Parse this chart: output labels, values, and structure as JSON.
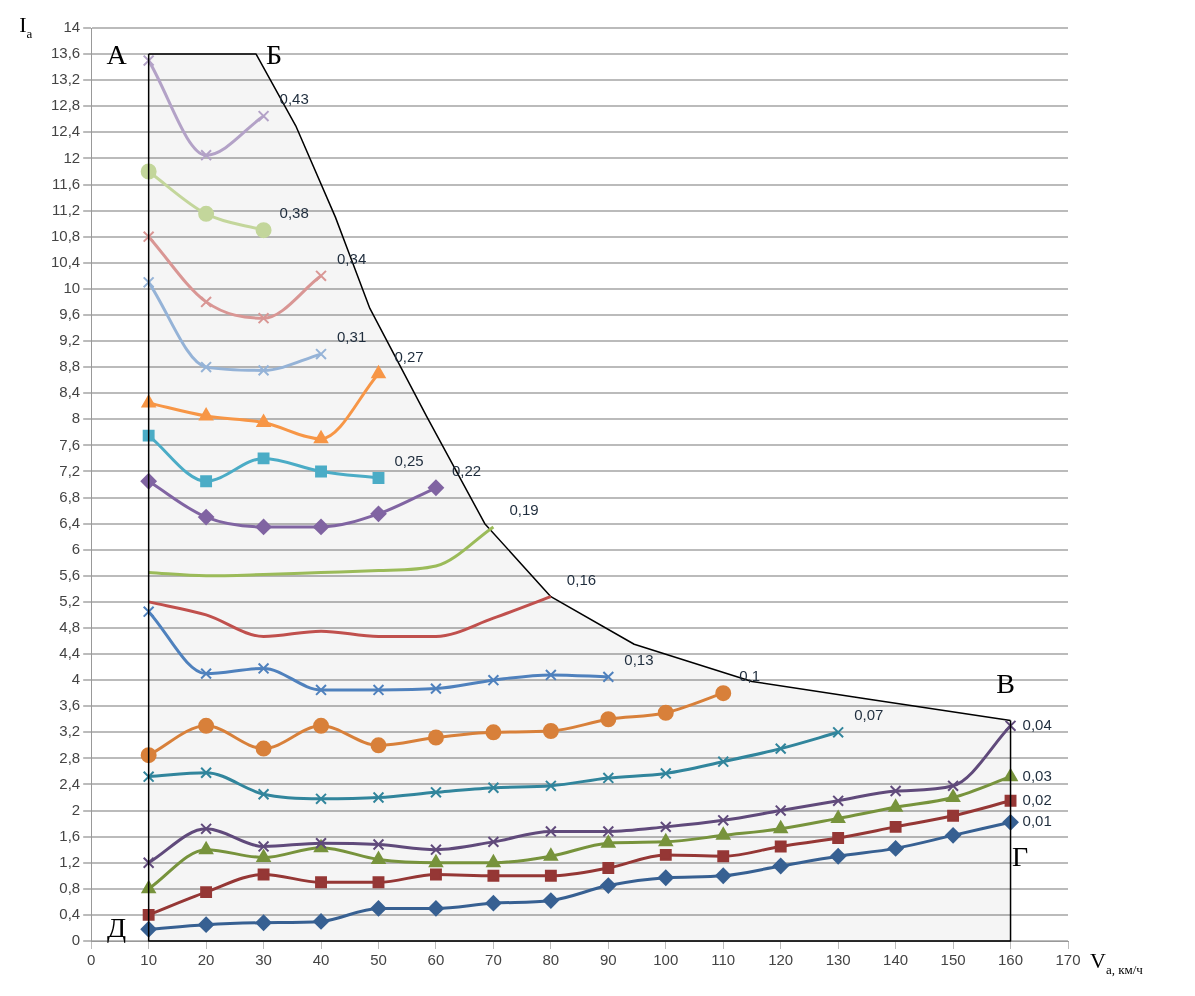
{
  "chart_data": {
    "type": "line",
    "xlabel": "V$_{a, км/ч}$",
    "ylabel": "I$_{a}$",
    "xlim": [
      0,
      170
    ],
    "xticks": [
      0,
      10,
      20,
      30,
      40,
      50,
      60,
      70,
      80,
      90,
      100,
      110,
      120,
      130,
      140,
      150,
      160,
      170
    ],
    "ylim": [
      0,
      14
    ],
    "yticks": [
      0,
      {
        "value": 0.4,
        "label": "0,4"
      },
      {
        "value": 0.8,
        "label": "0,8"
      },
      {
        "value": 1.2,
        "label": "1,2"
      },
      {
        "value": 1.6,
        "label": "1,6"
      },
      2,
      {
        "value": 2.4,
        "label": "2,4"
      },
      {
        "value": 2.8,
        "label": "2,8"
      },
      {
        "value": 3.2,
        "label": "3,2"
      },
      {
        "value": 3.6,
        "label": "3,6"
      },
      4,
      {
        "value": 4.4,
        "label": "4,4"
      },
      {
        "value": 4.8,
        "label": "4,8"
      },
      {
        "value": 5.2,
        "label": "5,2"
      },
      {
        "value": 5.6,
        "label": "5,6"
      },
      6,
      {
        "value": 6.4,
        "label": "6,4"
      },
      {
        "value": 6.8,
        "label": "6,8"
      },
      {
        "value": 7.2,
        "label": "7,2"
      },
      {
        "value": 7.6,
        "label": "7,6"
      },
      8,
      {
        "value": 8.4,
        "label": "8,4"
      },
      {
        "value": 8.8,
        "label": "8,8"
      },
      {
        "value": 9.2,
        "label": "9,2"
      },
      {
        "value": 9.6,
        "label": "9,6"
      },
      10,
      {
        "value": 10.4,
        "label": "10,4"
      },
      {
        "value": 10.8,
        "label": "10,8"
      },
      {
        "value": 11.2,
        "label": "11,2"
      },
      {
        "value": 11.6,
        "label": "11,6"
      },
      12,
      {
        "value": 12.4,
        "label": "12,4"
      },
      {
        "value": 12.8,
        "label": "12,8"
      },
      {
        "value": 13.2,
        "label": "13,2"
      },
      {
        "value": 13.6,
        "label": "13,6"
      },
      14
    ],
    "grid": "y",
    "legend": false,
    "series": [
      {
        "name": "0,43",
        "color": "#b3a2c7",
        "marker": "cross",
        "x": [
          10,
          20,
          30
        ],
        "values": [
          13.5,
          12.05,
          12.65
        ]
      },
      {
        "name": "0,38",
        "color": "#c3d69b",
        "marker": "circle",
        "x": [
          10,
          20,
          30
        ],
        "values": [
          11.8,
          11.15,
          10.9
        ]
      },
      {
        "name": "0,34",
        "color": "#d99694",
        "marker": "cross",
        "x": [
          10,
          20,
          30,
          40
        ],
        "values": [
          10.8,
          9.8,
          9.55,
          10.2
        ]
      },
      {
        "name": "0,31",
        "color": "#95b3d7",
        "marker": "cross",
        "x": [
          10,
          20,
          30,
          40
        ],
        "values": [
          10.1,
          8.8,
          8.75,
          9.0
        ]
      },
      {
        "name": "0,27",
        "color": "#f79646",
        "marker": "triangle",
        "x": [
          10,
          20,
          30,
          40,
          50
        ],
        "values": [
          8.25,
          8.05,
          7.95,
          7.7,
          8.7
        ]
      },
      {
        "name": "0,25",
        "color": "#4bacc6",
        "marker": "square",
        "x": [
          10,
          20,
          30,
          40,
          50
        ],
        "values": [
          7.75,
          7.05,
          7.4,
          7.2,
          7.1
        ]
      },
      {
        "name": "0,22",
        "color": "#8064a2",
        "marker": "diamond",
        "x": [
          10,
          20,
          30,
          40,
          50,
          60
        ],
        "values": [
          7.05,
          6.5,
          6.35,
          6.35,
          6.55,
          6.95
        ]
      },
      {
        "name": "0,19",
        "color": "#9bbb59",
        "marker": "none",
        "x": [
          10,
          20,
          30,
          40,
          50,
          60,
          70
        ],
        "values": [
          5.65,
          5.6,
          5.62,
          5.65,
          5.68,
          5.75,
          6.35
        ]
      },
      {
        "name": "0,16",
        "color": "#c0504d",
        "marker": "none",
        "x": [
          10,
          20,
          30,
          40,
          50,
          60,
          70,
          80
        ],
        "values": [
          5.2,
          5.0,
          4.67,
          4.75,
          4.67,
          4.67,
          4.95,
          5.28
        ]
      },
      {
        "name": "0,13",
        "color": "#4f81bd",
        "marker": "cross",
        "x": [
          10,
          20,
          30,
          40,
          50,
          60,
          70,
          80,
          90
        ],
        "values": [
          5.05,
          4.1,
          4.18,
          3.85,
          3.85,
          3.87,
          4.0,
          4.08,
          4.05
        ]
      },
      {
        "name": "0,1",
        "color": "#d8803a",
        "marker": "circle",
        "x": [
          10,
          20,
          30,
          40,
          50,
          60,
          70,
          80,
          90,
          100,
          110
        ],
        "values": [
          2.85,
          3.3,
          2.95,
          3.3,
          3.0,
          3.12,
          3.2,
          3.22,
          3.4,
          3.5,
          3.8
        ]
      },
      {
        "name": "0,07",
        "color": "#31859c",
        "marker": "cross",
        "x": [
          10,
          20,
          30,
          40,
          50,
          60,
          70,
          80,
          90,
          100,
          110,
          120,
          130
        ],
        "values": [
          2.52,
          2.58,
          2.25,
          2.18,
          2.2,
          2.28,
          2.35,
          2.38,
          2.5,
          2.57,
          2.75,
          2.95,
          3.2
        ]
      },
      {
        "name": "0,04",
        "color": "#604a7b",
        "marker": "cross",
        "x": [
          10,
          20,
          30,
          40,
          50,
          60,
          70,
          80,
          90,
          100,
          110,
          120,
          130,
          140,
          150,
          160
        ],
        "values": [
          1.2,
          1.72,
          1.45,
          1.5,
          1.48,
          1.4,
          1.52,
          1.68,
          1.68,
          1.75,
          1.85,
          2.0,
          2.15,
          2.3,
          2.38,
          3.3
        ]
      },
      {
        "name": "0,03",
        "color": "#77933c",
        "marker": "triangle",
        "x": [
          10,
          20,
          30,
          40,
          50,
          60,
          70,
          80,
          90,
          100,
          110,
          120,
          130,
          140,
          150,
          160
        ],
        "values": [
          0.8,
          1.4,
          1.28,
          1.43,
          1.25,
          1.2,
          1.2,
          1.3,
          1.5,
          1.52,
          1.62,
          1.72,
          1.88,
          2.05,
          2.2,
          2.52
        ]
      },
      {
        "name": "0,02",
        "color": "#953735",
        "marker": "square",
        "x": [
          10,
          20,
          30,
          40,
          50,
          60,
          70,
          80,
          90,
          100,
          110,
          120,
          130,
          140,
          150,
          160
        ],
        "values": [
          0.4,
          0.75,
          1.02,
          0.9,
          0.9,
          1.02,
          1.0,
          1.0,
          1.12,
          1.32,
          1.3,
          1.45,
          1.58,
          1.75,
          1.92,
          2.15
        ]
      },
      {
        "name": "0,01",
        "color": "#376092",
        "marker": "diamond",
        "x": [
          10,
          20,
          30,
          40,
          50,
          60,
          70,
          80,
          90,
          100,
          110,
          120,
          130,
          140,
          150,
          160
        ],
        "values": [
          0.18,
          0.25,
          0.28,
          0.3,
          0.5,
          0.5,
          0.58,
          0.62,
          0.85,
          0.97,
          1.0,
          1.15,
          1.3,
          1.42,
          1.62,
          1.82
        ]
      },
      {
        "type": "area",
        "color": "#000000",
        "marker": "none",
        "x": [
          10,
          28.7,
          35.6,
          42.5,
          48.5,
          58.4,
          68.5,
          80,
          94.5,
          115,
          134.5,
          160
        ],
        "values": [
          13.6,
          13.6,
          12.5,
          11.1,
          9.7,
          8.04,
          6.4,
          5.28,
          4.55,
          3.98,
          3.72,
          3.38
        ]
      }
    ],
    "annotations": [
      {
        "text": "А",
        "x": 10,
        "y": 13.6
      },
      {
        "text": "Б",
        "x": 28.7,
        "y": 13.6
      },
      {
        "text": "В",
        "x": 160,
        "y": 3.38
      },
      "Г",
      {
        "text": "Д",
        "x": 10,
        "y": 0
      }
    ]
  }
}
